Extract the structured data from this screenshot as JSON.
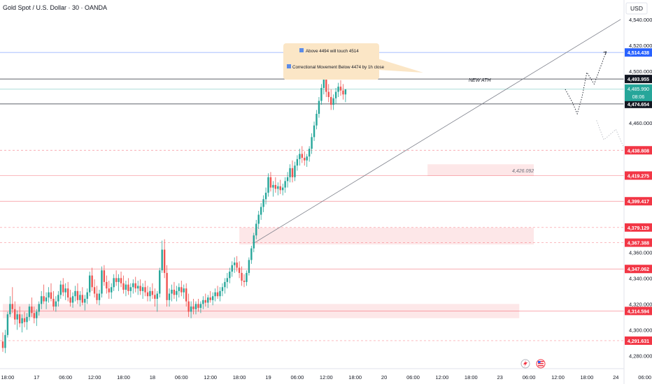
{
  "chart_data": {
    "type": "candlestick",
    "title": "Gold Spot / U.S. Dollar · 30 · OANDA",
    "currency": "USD",
    "ylim": [
      4270,
      4555
    ],
    "y_ticks": [
      4280,
      4300,
      4320,
      4340,
      4360,
      4460,
      4480,
      4500,
      4520,
      4540
    ],
    "x_ticks": [
      {
        "label": "18:00",
        "bar": 2
      },
      {
        "label": "17",
        "bar": 14
      },
      {
        "label": "06:00",
        "bar": 26
      },
      {
        "label": "12:00",
        "bar": 38
      },
      {
        "label": "18:00",
        "bar": 50
      },
      {
        "label": "18",
        "bar": 62
      },
      {
        "label": "06:00",
        "bar": 74
      },
      {
        "label": "12:00",
        "bar": 86
      },
      {
        "label": "18:00",
        "bar": 98
      },
      {
        "label": "19",
        "bar": 110
      },
      {
        "label": "06:00",
        "bar": 122
      },
      {
        "label": "12:00",
        "bar": 134
      },
      {
        "label": "18:00",
        "bar": 146
      },
      {
        "label": "20",
        "bar": 158
      },
      {
        "label": "06:00",
        "bar": 170
      },
      {
        "label": "12:00",
        "bar": 182
      },
      {
        "label": "18:00",
        "bar": 194
      },
      {
        "label": "23",
        "bar": 206
      },
      {
        "label": "06:00",
        "bar": 218
      },
      {
        "label": "12:00",
        "bar": 230
      },
      {
        "label": "18:00",
        "bar": 242
      },
      {
        "label": "24",
        "bar": 254
      },
      {
        "label": "06:00",
        "bar": 266
      }
    ],
    "price_levels": [
      {
        "value": 4514.438,
        "label": "4,514.438",
        "color": "#2962ff",
        "style": "solid"
      },
      {
        "value": 4493.955,
        "label": "4,493.955",
        "color": "#131722",
        "style": "solid"
      },
      {
        "value": 4474.654,
        "label": "4,474.654",
        "color": "#131722",
        "style": "solid"
      },
      {
        "value": 4438.808,
        "label": "4,438.808",
        "color": "#f23645",
        "style": "dashed"
      },
      {
        "value": 4419.275,
        "label": "4,419.275",
        "color": "#f23645",
        "style": "solid"
      },
      {
        "value": 4399.417,
        "label": "4,399.417",
        "color": "#f23645",
        "style": "solid"
      },
      {
        "value": 4379.129,
        "label": "4,379.129",
        "color": "#f23645",
        "style": "dashed"
      },
      {
        "value": 4367.388,
        "label": "4,367.388",
        "color": "#f23645",
        "style": "dashed"
      },
      {
        "value": 4347.062,
        "label": "4,347.062",
        "color": "#f23645",
        "style": "solid"
      },
      {
        "value": 4314.594,
        "label": "4,314.594",
        "color": "#f23645",
        "style": "solid"
      },
      {
        "value": 4291.631,
        "label": "4,291.631",
        "color": "#f23645",
        "style": "dashed"
      }
    ],
    "current_price": {
      "value": 4485.99,
      "label": "4,485.990",
      "countdown": "08:06",
      "color": "#26a69a"
    },
    "zones": [
      {
        "x0_bar": 0,
        "x1_bar": 214,
        "y0": 4309,
        "y1": 4320
      },
      {
        "x0_bar": 98,
        "x1_bar": 220,
        "y0": 4366,
        "y1": 4379
      },
      {
        "x0_bar": 176,
        "x1_bar": 220,
        "y0": 4419,
        "y1": 4428
      }
    ],
    "trendline": {
      "x0_bar": 104,
      "y0": 4367,
      "x1_bar": 256,
      "y1": 4540
    },
    "annotations": {
      "new_ath": "NEW ATH",
      "mid_value": "4,426.092",
      "callout_lines": [
        "Above 4494 will touch 4514",
        "Correctional Movement Below 4474 by 1h close"
      ]
    },
    "projection_dotted": [
      [
        4486,
        233
      ],
      [
        4476,
        236
      ],
      [
        4467,
        238
      ],
      [
        4480,
        240
      ],
      [
        4499,
        242
      ],
      [
        4490,
        245
      ],
      [
        4500,
        247
      ],
      [
        4515,
        250
      ]
    ],
    "projection_faint": [
      [
        4462,
        246
      ],
      [
        4447,
        249
      ],
      [
        4450,
        251
      ],
      [
        4455,
        254
      ],
      [
        4438,
        258
      ],
      [
        4451,
        261
      ],
      [
        4468,
        264
      ],
      [
        4491,
        267
      ]
    ],
    "ohlc": [
      [
        4291,
        4298,
        4283,
        4286
      ],
      [
        4286,
        4300,
        4282,
        4296
      ],
      [
        4296,
        4314,
        4294,
        4312
      ],
      [
        4312,
        4326,
        4310,
        4320
      ],
      [
        4320,
        4333,
        4313,
        4316
      ],
      [
        4316,
        4322,
        4304,
        4308
      ],
      [
        4308,
        4315,
        4300,
        4312
      ],
      [
        4312,
        4318,
        4302,
        4305
      ],
      [
        4305,
        4312,
        4298,
        4309
      ],
      [
        4309,
        4314,
        4302,
        4306
      ],
      [
        4306,
        4313,
        4300,
        4310
      ],
      [
        4310,
        4320,
        4307,
        4318
      ],
      [
        4318,
        4325,
        4310,
        4313
      ],
      [
        4313,
        4318,
        4305,
        4309
      ],
      [
        4309,
        4316,
        4303,
        4314
      ],
      [
        4314,
        4322,
        4311,
        4320
      ],
      [
        4320,
        4330,
        4316,
        4326
      ],
      [
        4326,
        4335,
        4320,
        4322
      ],
      [
        4322,
        4329,
        4316,
        4325
      ],
      [
        4325,
        4333,
        4321,
        4329
      ],
      [
        4329,
        4336,
        4322,
        4324
      ],
      [
        4324,
        4330,
        4315,
        4318
      ],
      [
        4318,
        4326,
        4314,
        4322
      ],
      [
        4322,
        4330,
        4318,
        4327
      ],
      [
        4327,
        4338,
        4324,
        4335
      ],
      [
        4335,
        4340,
        4326,
        4329
      ],
      [
        4329,
        4336,
        4323,
        4332
      ],
      [
        4332,
        4337,
        4322,
        4325
      ],
      [
        4325,
        4331,
        4318,
        4321
      ],
      [
        4321,
        4329,
        4317,
        4326
      ],
      [
        4326,
        4334,
        4322,
        4330
      ],
      [
        4330,
        4336,
        4320,
        4323
      ],
      [
        4323,
        4330,
        4318,
        4327
      ],
      [
        4327,
        4333,
        4319,
        4321
      ],
      [
        4321,
        4327,
        4315,
        4324
      ],
      [
        4324,
        4332,
        4320,
        4329
      ],
      [
        4329,
        4345,
        4326,
        4342
      ],
      [
        4342,
        4348,
        4330,
        4333
      ],
      [
        4333,
        4339,
        4325,
        4328
      ],
      [
        4328,
        4334,
        4320,
        4323
      ],
      [
        4323,
        4331,
        4319,
        4328
      ],
      [
        4328,
        4349,
        4325,
        4346
      ],
      [
        4346,
        4350,
        4334,
        4337
      ],
      [
        4337,
        4342,
        4328,
        4332
      ],
      [
        4332,
        4338,
        4324,
        4329
      ],
      [
        4329,
        4336,
        4324,
        4333
      ],
      [
        4333,
        4343,
        4330,
        4340
      ],
      [
        4340,
        4346,
        4334,
        4337
      ],
      [
        4337,
        4343,
        4330,
        4340
      ],
      [
        4340,
        4345,
        4333,
        4336
      ],
      [
        4336,
        4342,
        4328,
        4331
      ],
      [
        4331,
        4338,
        4326,
        4335
      ],
      [
        4335,
        4340,
        4327,
        4330
      ],
      [
        4330,
        4336,
        4325,
        4333
      ],
      [
        4333,
        4339,
        4328,
        4336
      ],
      [
        4336,
        4341,
        4329,
        4332
      ],
      [
        4332,
        4338,
        4327,
        4334
      ],
      [
        4334,
        4339,
        4327,
        4330
      ],
      [
        4330,
        4336,
        4324,
        4333
      ],
      [
        4333,
        4338,
        4326,
        4329
      ],
      [
        4329,
        4334,
        4322,
        4326
      ],
      [
        4326,
        4333,
        4322,
        4330
      ],
      [
        4330,
        4336,
        4324,
        4327
      ],
      [
        4327,
        4332,
        4318,
        4324
      ],
      [
        4324,
        4330,
        4314,
        4328
      ],
      [
        4328,
        4348,
        4325,
        4346
      ],
      [
        4346,
        4369,
        4344,
        4362
      ],
      [
        4362,
        4370,
        4340,
        4344
      ],
      [
        4344,
        4350,
        4318,
        4323
      ],
      [
        4323,
        4332,
        4318,
        4328
      ],
      [
        4328,
        4335,
        4322,
        4331
      ],
      [
        4331,
        4337,
        4324,
        4327
      ],
      [
        4327,
        4334,
        4322,
        4330
      ],
      [
        4330,
        4336,
        4325,
        4333
      ],
      [
        4333,
        4338,
        4326,
        4329
      ],
      [
        4329,
        4335,
        4324,
        4332
      ],
      [
        4332,
        4336,
        4318,
        4322
      ],
      [
        4322,
        4328,
        4310,
        4314
      ],
      [
        4314,
        4322,
        4309,
        4318
      ],
      [
        4318,
        4324,
        4312,
        4316
      ],
      [
        4316,
        4322,
        4312,
        4320
      ],
      [
        4320,
        4324,
        4314,
        4317
      ],
      [
        4317,
        4322,
        4313,
        4320
      ],
      [
        4320,
        4326,
        4316,
        4323
      ],
      [
        4323,
        4328,
        4318,
        4321
      ],
      [
        4321,
        4327,
        4317,
        4325
      ],
      [
        4325,
        4330,
        4321,
        4323
      ],
      [
        4323,
        4329,
        4319,
        4326
      ],
      [
        4326,
        4332,
        4322,
        4329
      ],
      [
        4329,
        4334,
        4324,
        4326
      ],
      [
        4326,
        4333,
        4322,
        4330
      ],
      [
        4330,
        4336,
        4326,
        4333
      ],
      [
        4333,
        4340,
        4328,
        4337
      ],
      [
        4337,
        4344,
        4332,
        4340
      ],
      [
        4340,
        4348,
        4336,
        4345
      ],
      [
        4345,
        4353,
        4341,
        4350
      ],
      [
        4350,
        4356,
        4344,
        4352
      ],
      [
        4352,
        4357,
        4345,
        4348
      ],
      [
        4348,
        4353,
        4340,
        4344
      ],
      [
        4344,
        4349,
        4334,
        4338
      ],
      [
        4338,
        4343,
        4333,
        4337
      ],
      [
        4337,
        4346,
        4334,
        4344
      ],
      [
        4344,
        4356,
        4342,
        4354
      ],
      [
        4354,
        4365,
        4351,
        4363
      ],
      [
        4363,
        4375,
        4360,
        4373
      ],
      [
        4373,
        4385,
        4370,
        4382
      ],
      [
        4382,
        4392,
        4378,
        4389
      ],
      [
        4389,
        4398,
        4385,
        4395
      ],
      [
        4395,
        4404,
        4391,
        4401
      ],
      [
        4401,
        4410,
        4397,
        4406
      ],
      [
        4406,
        4421,
        4403,
        4418
      ],
      [
        4418,
        4422,
        4407,
        4410
      ],
      [
        4410,
        4415,
        4403,
        4412
      ],
      [
        4412,
        4418,
        4406,
        4409
      ],
      [
        4409,
        4414,
        4404,
        4411
      ],
      [
        4411,
        4416,
        4405,
        4408
      ],
      [
        4408,
        4413,
        4404,
        4410
      ],
      [
        4410,
        4418,
        4406,
        4415
      ],
      [
        4415,
        4422,
        4410,
        4418
      ],
      [
        4418,
        4428,
        4414,
        4425
      ],
      [
        4425,
        4431,
        4414,
        4418
      ],
      [
        4418,
        4430,
        4415,
        4427
      ],
      [
        4427,
        4435,
        4423,
        4432
      ],
      [
        4432,
        4440,
        4427,
        4436
      ],
      [
        4436,
        4442,
        4429,
        4433
      ],
      [
        4433,
        4438,
        4427,
        4431
      ],
      [
        4431,
        4436,
        4426,
        4434
      ],
      [
        4434,
        4442,
        4430,
        4440
      ],
      [
        4440,
        4452,
        4436,
        4449
      ],
      [
        4449,
        4461,
        4446,
        4458
      ],
      [
        4458,
        4470,
        4455,
        4467
      ],
      [
        4467,
        4480,
        4464,
        4477
      ],
      [
        4477,
        4490,
        4474,
        4487
      ],
      [
        4487,
        4497,
        4482,
        4494
      ],
      [
        4494,
        4496,
        4480,
        4484
      ],
      [
        4484,
        4490,
        4476,
        4480
      ],
      [
        4480,
        4486,
        4470,
        4474
      ],
      [
        4474,
        4482,
        4470,
        4479
      ],
      [
        4479,
        4487,
        4475,
        4484
      ],
      [
        4484,
        4491,
        4480,
        4488
      ],
      [
        4488,
        4493,
        4481,
        4485
      ],
      [
        4485,
        4490,
        4478,
        4482
      ],
      [
        4482,
        4486,
        4476,
        4486
      ]
    ]
  }
}
